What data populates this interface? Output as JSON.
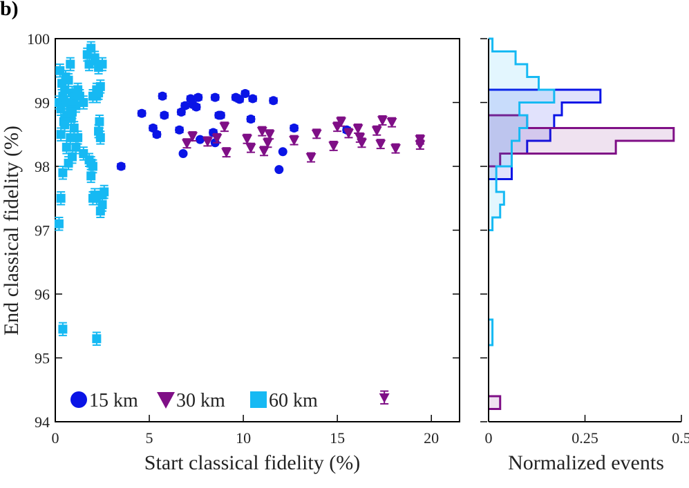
{
  "panel_label": "b)",
  "colors": {
    "15 km": "#0a14e6",
    "30 km": "#7f0f86",
    "60 km": "#16b9f3"
  },
  "chart_data": [
    {
      "type": "scatter",
      "xlabel": "Start classical fidelity (%)",
      "ylabel": "End classical fidelity (%)",
      "xlim": [
        0,
        21.5
      ],
      "ylim": [
        94,
        100
      ],
      "xticks": [
        "0",
        "5",
        "10",
        "15",
        "20"
      ],
      "yticks": [
        "94",
        "95",
        "96",
        "97",
        "98",
        "99",
        "100"
      ],
      "legend_position": "bottom-left",
      "error_bars": true,
      "series": [
        {
          "name": "15 km",
          "marker": "circle",
          "x": [
            4.6,
            5.2,
            5.4,
            5.7,
            5.8,
            6.6,
            6.7,
            6.9,
            7.2,
            7.3,
            7.5,
            7.6,
            8.4,
            8.5,
            8.7,
            8.8,
            9.6,
            9.8,
            10.1,
            10.4,
            10.5,
            11.6,
            12.7,
            6.8,
            7.7,
            8.5,
            11.9,
            12.1,
            15.5,
            3.5
          ],
          "y": [
            98.83,
            98.6,
            98.5,
            99.1,
            98.8,
            98.57,
            98.85,
            98.95,
            99.06,
            98.97,
            98.93,
            99.08,
            98.53,
            99.08,
            98.8,
            98.8,
            99.08,
            99.05,
            99.14,
            98.74,
            99.06,
            99.03,
            98.6,
            98.2,
            98.42,
            98.37,
            97.95,
            98.23,
            98.57,
            98.0
          ],
          "yerr": [
            0.04,
            0.04,
            0.04,
            0.04,
            0.04,
            0.04,
            0.04,
            0.04,
            0.04,
            0.04,
            0.04,
            0.04,
            0.04,
            0.04,
            0.04,
            0.04,
            0.04,
            0.04,
            0.04,
            0.04,
            0.04,
            0.04,
            0.04,
            0.0,
            0.0,
            0.0,
            0.0,
            0.0,
            0.04,
            0.04
          ]
        },
        {
          "name": "30 km",
          "marker": "triangle-down",
          "x": [
            7.0,
            7.3,
            8.1,
            8.6,
            9.0,
            9.1,
            10.2,
            10.4,
            11.0,
            11.1,
            11.3,
            11.4,
            12.7,
            13.6,
            13.9,
            14.8,
            15.0,
            15.2,
            15.6,
            16.1,
            16.2,
            16.3,
            17.1,
            17.3,
            17.4,
            17.9,
            18.1,
            19.4,
            19.4,
            17.5
          ],
          "y": [
            98.36,
            98.47,
            98.39,
            98.44,
            98.62,
            98.22,
            98.43,
            98.29,
            98.55,
            98.24,
            98.37,
            98.5,
            98.41,
            98.14,
            98.51,
            98.32,
            98.62,
            98.7,
            98.52,
            98.59,
            98.45,
            98.37,
            98.56,
            98.35,
            98.72,
            98.69,
            98.28,
            98.42,
            98.34,
            94.38
          ],
          "yerr": [
            0.07,
            0.07,
            0.07,
            0.07,
            0.07,
            0.07,
            0.07,
            0.07,
            0.07,
            0.07,
            0.07,
            0.07,
            0.07,
            0.07,
            0.07,
            0.07,
            0.07,
            0.07,
            0.07,
            0.07,
            0.07,
            0.07,
            0.07,
            0.07,
            0.07,
            0.07,
            0.07,
            0.07,
            0.07,
            0.1
          ]
        },
        {
          "name": "60 km",
          "marker": "square",
          "x": [
            0.2,
            0.25,
            0.3,
            0.35,
            0.4,
            0.45,
            0.5,
            0.55,
            0.6,
            0.65,
            0.7,
            0.8,
            0.85,
            0.9,
            1.0,
            1.1,
            1.2,
            1.3,
            1.5,
            1.7,
            1.8,
            1.9,
            2.0,
            2.1,
            2.2,
            2.3,
            2.35,
            2.4,
            2.5,
            0.3,
            0.4,
            0.5,
            0.6,
            0.7,
            0.8,
            0.9,
            1.0,
            1.1,
            1.2,
            1.5,
            1.8,
            1.9,
            2.0,
            2.1,
            2.2,
            2.3,
            2.4,
            2.5,
            2.6,
            0.2,
            0.3,
            0.4,
            2.2,
            0.5,
            0.6,
            0.8,
            0.9,
            1.9,
            2.0,
            2.1,
            2.2,
            2.3,
            2.4,
            2.5
          ],
          "y": [
            99.0,
            99.5,
            98.9,
            99.3,
            99.1,
            98.7,
            99.2,
            99.4,
            98.8,
            99.0,
            99.35,
            99.6,
            98.75,
            99.15,
            99.05,
            98.95,
            99.2,
            99.1,
            99.0,
            99.75,
            99.6,
            99.85,
            99.1,
            99.65,
            99.2,
            99.55,
            98.7,
            99.25,
            99.6,
            98.5,
            97.9,
            98.75,
            98.3,
            98.05,
            98.45,
            98.15,
            98.6,
            98.3,
            98.45,
            98.2,
            98.1,
            98.05,
            97.5,
            97.55,
            97.5,
            98.55,
            98.45,
            97.4,
            97.6,
            97.1,
            97.5,
            95.45,
            95.3,
            98.65,
            99.0,
            98.9,
            98.85,
            97.85,
            98.0,
            99.7,
            99.1,
            99.15,
            97.3,
            97.55
          ],
          "yerr": [
            0.1,
            0.1,
            0.1,
            0.1,
            0.1,
            0.1,
            0.1,
            0.1,
            0.1,
            0.1,
            0.1,
            0.1,
            0.1,
            0.1,
            0.1,
            0.1,
            0.1,
            0.1,
            0.1,
            0.1,
            0.1,
            0.1,
            0.1,
            0.1,
            0.1,
            0.1,
            0.1,
            0.1,
            0.1,
            0.1,
            0.1,
            0.1,
            0.1,
            0.1,
            0.1,
            0.1,
            0.1,
            0.1,
            0.1,
            0.1,
            0.1,
            0.1,
            0.1,
            0.1,
            0.1,
            0.1,
            0.1,
            0.1,
            0.1,
            0.1,
            0.1,
            0.1,
            0.1,
            0.1,
            0.1,
            0.1,
            0.1,
            0.1,
            0.1,
            0.1,
            0.1,
            0.1,
            0.1,
            0.1
          ]
        }
      ]
    },
    {
      "type": "histogram",
      "orientation": "horizontal",
      "xlabel": "Normalized events",
      "xlim": [
        0,
        0.5
      ],
      "xticks": [
        "0",
        "0.25",
        "0.5"
      ],
      "ylim": [
        94,
        100
      ],
      "series": [
        {
          "name": "15 km",
          "bins": [
            [
              97.8,
              98.0,
              0.06
            ],
            [
              98.0,
              98.2,
              0.06
            ],
            [
              98.2,
              98.4,
              0.1
            ],
            [
              98.4,
              98.6,
              0.16
            ],
            [
              98.6,
              98.8,
              0.17
            ],
            [
              98.8,
              99.0,
              0.19
            ],
            [
              99.0,
              99.2,
              0.29
            ]
          ]
        },
        {
          "name": "30 km",
          "bins": [
            [
              94.2,
              94.4,
              0.03
            ],
            [
              98.0,
              98.2,
              0.03
            ],
            [
              98.2,
              98.4,
              0.33
            ],
            [
              98.4,
              98.6,
              0.48
            ],
            [
              98.6,
              98.8,
              0.1
            ]
          ]
        },
        {
          "name": "60 km",
          "bins": [
            [
              95.2,
              95.4,
              0.01
            ],
            [
              95.4,
              95.6,
              0.01
            ],
            [
              97.0,
              97.2,
              0.01
            ],
            [
              97.2,
              97.4,
              0.03
            ],
            [
              97.4,
              97.6,
              0.04
            ],
            [
              97.6,
              97.8,
              0.02
            ],
            [
              97.8,
              98.0,
              0.02
            ],
            [
              98.0,
              98.2,
              0.06
            ],
            [
              98.2,
              98.4,
              0.06
            ],
            [
              98.4,
              98.6,
              0.08
            ],
            [
              98.6,
              98.8,
              0.1
            ],
            [
              98.8,
              99.0,
              0.08
            ],
            [
              99.0,
              99.2,
              0.17
            ],
            [
              99.2,
              99.4,
              0.13
            ],
            [
              99.4,
              99.6,
              0.1
            ],
            [
              99.6,
              99.8,
              0.07
            ],
            [
              99.8,
              100.0,
              0.01
            ]
          ]
        }
      ]
    }
  ]
}
